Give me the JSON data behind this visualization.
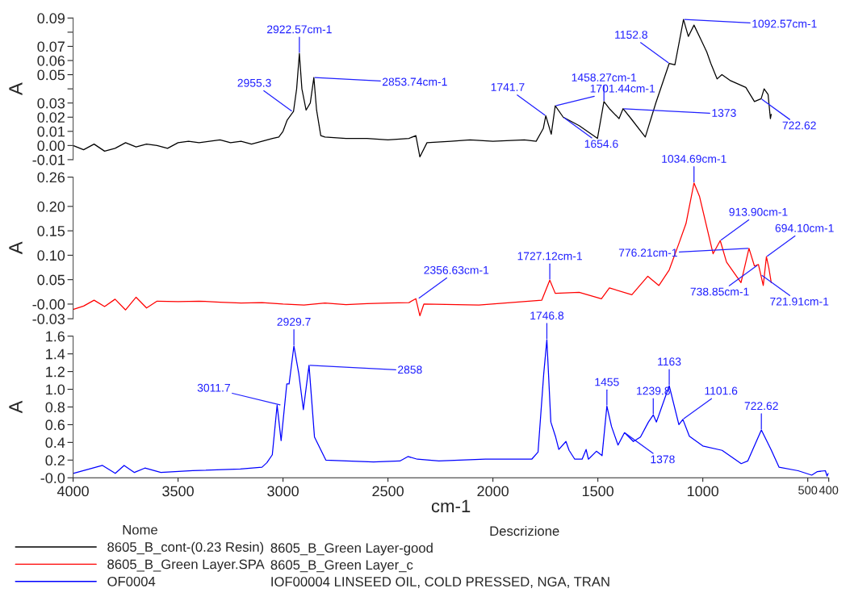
{
  "chart_data": [
    {
      "type": "line",
      "ylabel": "A",
      "xlim": [
        4000,
        400
      ],
      "ylim": [
        -0.01,
        0.09
      ],
      "yticks": [
        0.09,
        {
          "value": 0.08,
          "label": null
        },
        0.07,
        0.06,
        0.05,
        {
          "value": 0.04,
          "label": null
        },
        0.03,
        0.02,
        0.01,
        {
          "value": 0,
          "label": "0.00"
        },
        -0.01
      ],
      "tick_labels": "y",
      "grid": false,
      "legend": "bottom",
      "marker": "none",
      "line_style": "solid",
      "x": [
        4000,
        3950,
        3900,
        3850,
        3800,
        3750,
        3700,
        3650,
        3600,
        3550,
        3500,
        3450,
        3400,
        3350,
        3300,
        3250,
        3200,
        3150,
        3100,
        3050,
        3020,
        3000,
        2980,
        2960,
        2950,
        2935,
        2922,
        2910,
        2890,
        2870,
        2853,
        2840,
        2820,
        2800,
        2700,
        2600,
        2500,
        2400,
        2367,
        2348,
        2314,
        2200,
        2109,
        2000,
        1850,
        1794,
        1760,
        1748,
        1722,
        1703,
        1665,
        1589,
        1502,
        1471,
        1445,
        1399,
        1380,
        1342,
        1274,
        1224,
        1160,
        1133,
        1092,
        1069,
        1042,
        1000,
        981,
        962,
        932,
        909,
        871,
        795,
        754,
        722,
        708,
        689,
        678,
        674
      ],
      "series": [
        {
          "name": "8605_B_cont-(0.23 Resin)",
          "color": "#000000",
          "values": [
            0.0,
            -0.003,
            0.001,
            -0.004,
            -0.002,
            0.002,
            -0.001,
            0.001,
            0.0,
            -0.002,
            0.002,
            0.003,
            0.002,
            0.003,
            0.004,
            0.002,
            0.003,
            0.001,
            0.003,
            0.005,
            0.006,
            0.01,
            0.018,
            0.022,
            0.024,
            0.04,
            0.065,
            0.04,
            0.025,
            0.03,
            0.048,
            0.025,
            0.007,
            0.006,
            0.005,
            0.005,
            0.004,
            0.005,
            0.007,
            -0.008,
            0.002,
            0.003,
            0.004,
            0.003,
            0.004,
            0.003,
            0.012,
            0.021,
            0.008,
            0.028,
            0.02,
            0.014,
            0.005,
            0.031,
            0.026,
            0.019,
            0.026,
            0.019,
            0.006,
            0.03,
            0.058,
            0.057,
            0.089,
            0.077,
            0.085,
            0.072,
            0.066,
            0.058,
            0.047,
            0.05,
            0.046,
            0.041,
            0.031,
            0.033,
            0.04,
            0.036,
            0.019,
            0.022
          ]
        }
      ],
      "annotations": [
        {
          "text": "2955.3",
          "x": 2955,
          "y": 0.024
        },
        {
          "text": "2922.57cm-1",
          "x": 2922,
          "y": 0.065
        },
        {
          "text": "2853.74cm-1",
          "x": 2853,
          "y": 0.048
        },
        {
          "text": "1741.7",
          "x": 1748,
          "y": 0.021
        },
        {
          "text": "1701.44cm-1",
          "x": 1703,
          "y": 0.028
        },
        {
          "text": "1654.6",
          "x": 1665,
          "y": 0.02
        },
        {
          "text": "1458.27cm-1",
          "x": 1471,
          "y": 0.031
        },
        {
          "text": "1373",
          "x": 1380,
          "y": 0.026
        },
        {
          "text": "1152.8",
          "x": 1160,
          "y": 0.058
        },
        {
          "text": "1092.57cm-1",
          "x": 1092,
          "y": 0.089
        },
        {
          "text": "722.62",
          "x": 722,
          "y": 0.033
        },
        "Descrizione",
        "8605_B_Green Layer-good"
      ]
    },
    {
      "type": "line",
      "ylabel": "A",
      "xlim": [
        4000,
        400
      ],
      "ylim": [
        -0.03,
        0.26
      ],
      "yticks": [
        0.26,
        {
          "value": 0.2,
          "label": "0.20"
        },
        0.15,
        {
          "value": 0.1,
          "label": "0.10"
        },
        0.05,
        {
          "value": 0,
          "label": "-0.00"
        },
        -0.03
      ],
      "tick_labels": "y",
      "grid": false,
      "legend": "bottom",
      "marker": "none",
      "line_style": "solid",
      "x": [
        4000,
        3950,
        3900,
        3850,
        3800,
        3750,
        3700,
        3650,
        3600,
        3500,
        3400,
        3300,
        3200,
        3100,
        3000,
        2900,
        2800,
        2700,
        2600,
        2500,
        2400,
        2367,
        2348,
        2329,
        2067,
        1767,
        1729,
        1703,
        1589,
        1483,
        1445,
        1338,
        1262,
        1209,
        1160,
        1114,
        1080,
        1042,
        1016,
        951,
        917,
        887,
        818,
        780,
        754,
        735,
        712,
        697,
        685,
        674
      ],
      "series": [
        {
          "name": "8605_B_Green Layer.SPA",
          "color": "#ff0000",
          "values": [
            -0.011,
            -0.004,
            0.008,
            -0.005,
            0.01,
            -0.012,
            0.014,
            -0.008,
            0.006,
            0.005,
            0.006,
            0.004,
            0.002,
            0.003,
            0.0,
            -0.002,
            0.002,
            -0.001,
            0.001,
            0.002,
            0.003,
            0.011,
            -0.024,
            0.0,
            -0.002,
            0.008,
            0.049,
            0.022,
            0.024,
            0.011,
            0.033,
            0.019,
            0.057,
            0.038,
            0.07,
            0.124,
            0.165,
            0.248,
            0.221,
            0.103,
            0.13,
            0.086,
            0.044,
            0.114,
            0.078,
            0.081,
            0.038,
            0.097,
            0.073,
            0.044
          ]
        }
      ],
      "annotations": [
        {
          "text": "2356.63cm-1",
          "x": 2356,
          "y": 0.011
        },
        {
          "text": "1727.12cm-1",
          "x": 1729,
          "y": 0.049
        },
        {
          "text": "1034.69cm-1",
          "x": 1042,
          "y": 0.248
        },
        {
          "text": "913.90cm-1",
          "x": 917,
          "y": 0.13
        },
        {
          "text": "776.21cm-1",
          "x": 780,
          "y": 0.114
        },
        {
          "text": "738.85cm-1",
          "x": 738,
          "y": 0.08
        },
        {
          "text": "721.91cm-1",
          "x": 722,
          "y": 0.06
        },
        {
          "text": "694.10cm-1",
          "x": 697,
          "y": 0.097
        },
        "8605_B_Green Layer_c"
      ]
    },
    {
      "type": "line",
      "xlabel": "cm-1",
      "ylabel": "A",
      "xlim": [
        4000,
        400
      ],
      "ylim": [
        0,
        1.6
      ],
      "xticks": [
        4000,
        3500,
        3000,
        2500,
        2000,
        1500,
        1000,
        500,
        400
      ],
      "yticks": [
        {
          "value": 0,
          "label": "-0.0"
        },
        0.2,
        0.4,
        0.6,
        0.8,
        {
          "value": 1.0,
          "label": "1.0"
        },
        1.2,
        1.4,
        1.6
      ],
      "grid": false,
      "legend": "bottom",
      "legend_title": "Nome",
      "marker": "none",
      "line_style": "solid",
      "x": [
        4000,
        3860,
        3799,
        3757,
        3708,
        3658,
        3582,
        3430,
        3203,
        3100,
        3077,
        3051,
        3028,
        3009,
        2982,
        2971,
        2948,
        2925,
        2903,
        2876,
        2850,
        2796,
        2698,
        2569,
        2443,
        2405,
        2360,
        2257,
        2036,
        1815,
        1785,
        1758,
        1743,
        1724,
        1701,
        1686,
        1652,
        1637,
        1610,
        1575,
        1556,
        1545,
        1507,
        1480,
        1457,
        1435,
        1404,
        1373,
        1331,
        1297,
        1259,
        1236,
        1221,
        1160,
        1114,
        1095,
        1064,
        1000,
        908,
        817,
        786,
        721,
        675,
        637,
        546,
        481,
        454,
        416,
        408,
        402
      ],
      "series": [
        {
          "name": "OF0004",
          "color": "#0000ff",
          "values": [
            0.05,
            0.14,
            0.05,
            0.14,
            0.06,
            0.11,
            0.06,
            0.08,
            0.1,
            0.12,
            0.17,
            0.26,
            0.82,
            0.42,
            1.06,
            1.06,
            1.49,
            1.18,
            0.77,
            1.27,
            0.46,
            0.2,
            0.19,
            0.18,
            0.19,
            0.24,
            0.21,
            0.19,
            0.21,
            0.21,
            0.29,
            1.17,
            1.56,
            0.63,
            0.46,
            0.32,
            0.41,
            0.31,
            0.21,
            0.21,
            0.32,
            0.21,
            0.3,
            0.25,
            0.81,
            0.58,
            0.37,
            0.51,
            0.41,
            0.46,
            0.63,
            0.71,
            0.63,
            1.04,
            0.6,
            0.66,
            0.47,
            0.36,
            0.31,
            0.16,
            0.19,
            0.54,
            0.32,
            0.12,
            0.08,
            0.03,
            0.07,
            0.08,
            0.02,
            0.05
          ]
        }
      ],
      "annotations": [
        {
          "text": "3011.7",
          "x": 3009,
          "y": 0.82
        },
        {
          "text": "2929.7",
          "x": 2948,
          "y": 1.49
        },
        {
          "text": "2858",
          "x": 2876,
          "y": 1.27
        },
        {
          "text": "1746.8",
          "x": 1743,
          "y": 1.56
        },
        {
          "text": "1455",
          "x": 1457,
          "y": 0.81
        },
        {
          "text": "1378",
          "x": 1373,
          "y": 0.51
        },
        {
          "text": "1239.8",
          "x": 1236,
          "y": 0.71
        },
        {
          "text": "1163",
          "x": 1160,
          "y": 1.04
        },
        {
          "text": "1101.6",
          "x": 1095,
          "y": 0.66
        },
        {
          "text": "722.62",
          "x": 721,
          "y": 0.54
        },
        "IOF00004 LINSEED OIL, COLD PRESSED, NGA, TRAN"
      ]
    }
  ]
}
